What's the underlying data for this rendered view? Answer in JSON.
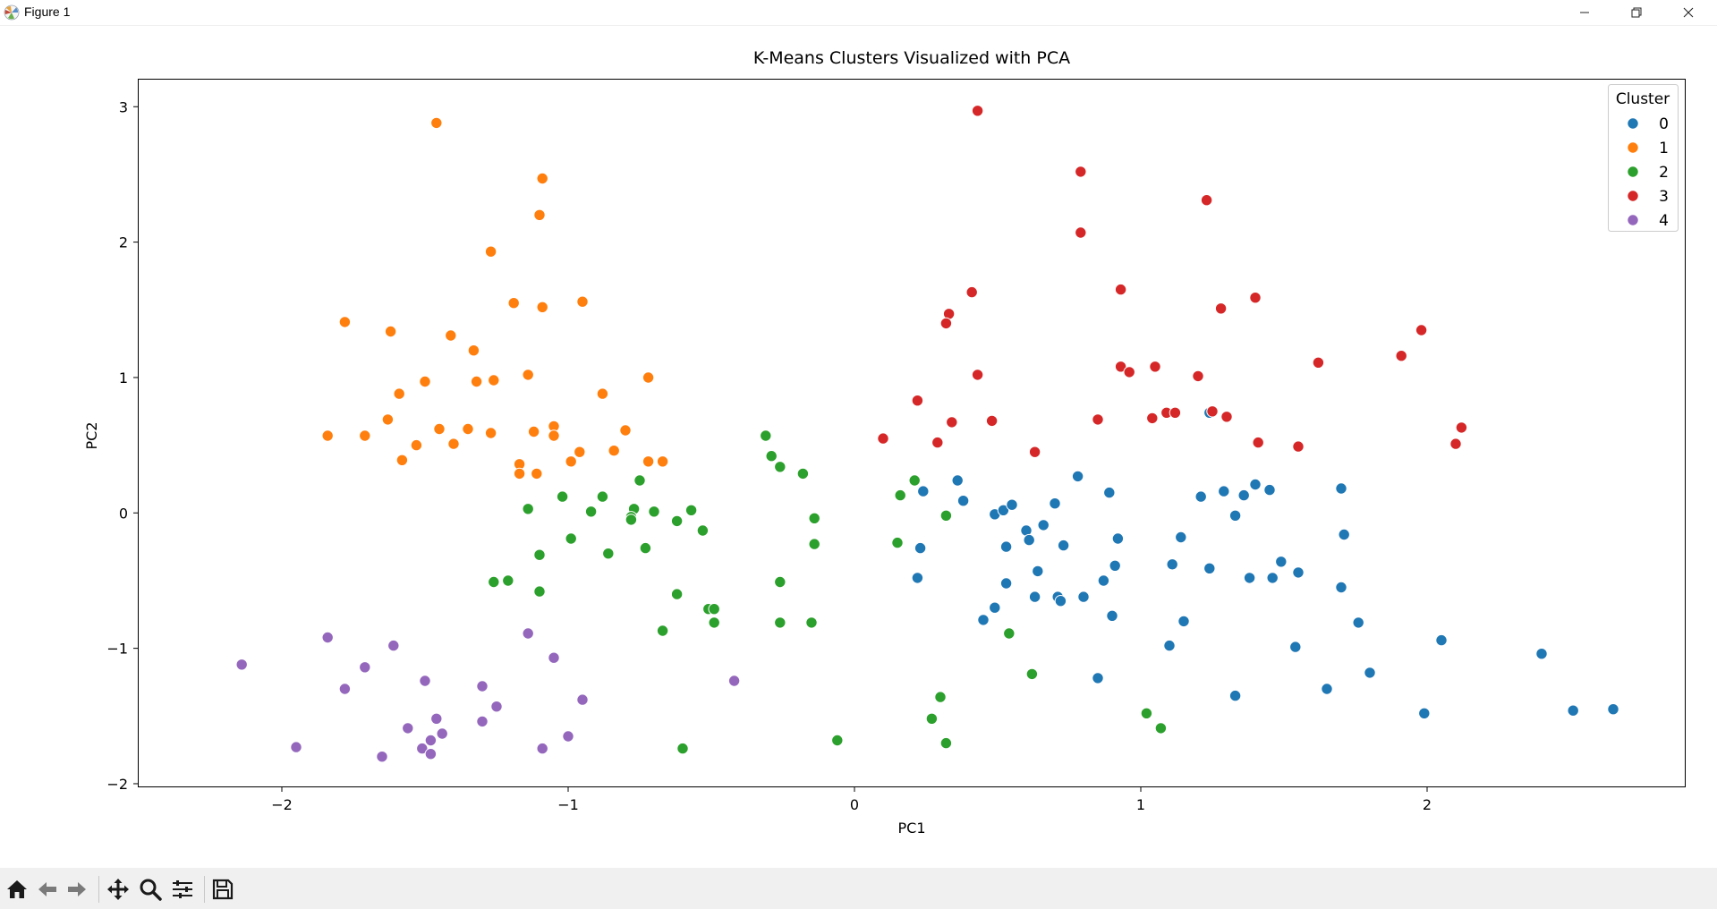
{
  "window": {
    "title": "Figure 1",
    "buttons": [
      "minimize-icon",
      "restore-icon",
      "close-icon"
    ]
  },
  "toolbar": {
    "icons": [
      "home-icon",
      "back-arrow-icon",
      "forward-arrow-icon",
      "pan-icon",
      "zoom-icon",
      "configure-subplots-icon",
      "save-icon"
    ]
  },
  "chart_data": {
    "type": "scatter",
    "title": "K-Means Clusters Visualized with PCA",
    "xlabel": "PC1",
    "ylabel": "PC2",
    "xlim": [
      -2.5,
      2.9
    ],
    "ylim": [
      -2.02,
      3.2
    ],
    "xticks": [
      -2,
      -1,
      0,
      1,
      2
    ],
    "yticks": [
      -2,
      -1,
      0,
      1,
      2,
      3
    ],
    "grid": false,
    "legend": {
      "title": "Cluster",
      "placement": "top-right"
    },
    "series": [
      {
        "name": "0",
        "color": "#1f77b4",
        "points": [
          [
            0.36,
            0.24
          ],
          [
            0.24,
            0.16
          ],
          [
            0.38,
            0.09
          ],
          [
            0.49,
            -0.01
          ],
          [
            0.52,
            0.02
          ],
          [
            0.55,
            0.06
          ],
          [
            0.66,
            -0.09
          ],
          [
            0.7,
            0.07
          ],
          [
            0.78,
            0.27
          ],
          [
            0.89,
            0.15
          ],
          [
            0.23,
            -0.26
          ],
          [
            0.22,
            -0.48
          ],
          [
            0.53,
            -0.25
          ],
          [
            0.6,
            -0.13
          ],
          [
            0.61,
            -0.2
          ],
          [
            0.73,
            -0.24
          ],
          [
            0.92,
            -0.19
          ],
          [
            0.64,
            -0.43
          ],
          [
            0.53,
            -0.52
          ],
          [
            0.63,
            -0.62
          ],
          [
            0.71,
            -0.62
          ],
          [
            0.72,
            -0.65
          ],
          [
            0.8,
            -0.62
          ],
          [
            0.87,
            -0.5
          ],
          [
            0.91,
            -0.39
          ],
          [
            0.49,
            -0.7
          ],
          [
            0.45,
            -0.79
          ],
          [
            0.9,
            -0.76
          ],
          [
            0.85,
            -1.22
          ],
          [
            1.21,
            0.12
          ],
          [
            1.29,
            0.16
          ],
          [
            1.36,
            0.13
          ],
          [
            1.4,
            0.21
          ],
          [
            1.45,
            0.17
          ],
          [
            1.33,
            -0.02
          ],
          [
            1.14,
            -0.18
          ],
          [
            1.11,
            -0.38
          ],
          [
            1.24,
            -0.41
          ],
          [
            1.38,
            -0.48
          ],
          [
            1.46,
            -0.48
          ],
          [
            1.49,
            -0.36
          ],
          [
            1.55,
            -0.44
          ],
          [
            1.15,
            -0.8
          ],
          [
            1.1,
            -0.98
          ],
          [
            1.33,
            -1.35
          ],
          [
            1.54,
            -0.99
          ],
          [
            1.24,
            0.74
          ],
          [
            1.7,
            0.18
          ],
          [
            1.71,
            -0.16
          ],
          [
            1.7,
            -0.55
          ],
          [
            1.76,
            -0.81
          ],
          [
            1.65,
            -1.3
          ],
          [
            1.8,
            -1.18
          ],
          [
            1.99,
            -1.48
          ],
          [
            2.05,
            -0.94
          ],
          [
            2.4,
            -1.04
          ],
          [
            2.51,
            -1.46
          ],
          [
            2.65,
            -1.45
          ]
        ]
      },
      {
        "name": "1",
        "color": "#ff7f0e",
        "points": [
          [
            -1.46,
            2.88
          ],
          [
            -1.09,
            2.47
          ],
          [
            -1.1,
            2.2
          ],
          [
            -1.27,
            1.93
          ],
          [
            -1.19,
            1.55
          ],
          [
            -1.09,
            1.52
          ],
          [
            -0.95,
            1.56
          ],
          [
            -1.78,
            1.41
          ],
          [
            -1.62,
            1.34
          ],
          [
            -1.41,
            1.31
          ],
          [
            -1.33,
            1.2
          ],
          [
            -1.14,
            1.02
          ],
          [
            -1.26,
            0.98
          ],
          [
            -1.32,
            0.97
          ],
          [
            -1.5,
            0.97
          ],
          [
            -1.59,
            0.88
          ],
          [
            -0.88,
            0.88
          ],
          [
            -0.72,
            1.0
          ],
          [
            -1.84,
            0.57
          ],
          [
            -1.71,
            0.57
          ],
          [
            -1.63,
            0.69
          ],
          [
            -1.45,
            0.62
          ],
          [
            -1.35,
            0.62
          ],
          [
            -1.27,
            0.59
          ],
          [
            -1.12,
            0.6
          ],
          [
            -1.05,
            0.64
          ],
          [
            -1.05,
            0.57
          ],
          [
            -0.8,
            0.61
          ],
          [
            -1.53,
            0.5
          ],
          [
            -1.4,
            0.51
          ],
          [
            -1.58,
            0.39
          ],
          [
            -1.17,
            0.36
          ],
          [
            -1.17,
            0.29
          ],
          [
            -1.11,
            0.29
          ],
          [
            -0.99,
            0.38
          ],
          [
            -0.96,
            0.45
          ],
          [
            -0.84,
            0.46
          ],
          [
            -0.72,
            0.38
          ],
          [
            -0.67,
            0.38
          ]
        ]
      },
      {
        "name": "2",
        "color": "#2ca02c",
        "points": [
          [
            -0.31,
            0.57
          ],
          [
            -0.29,
            0.42
          ],
          [
            -0.26,
            0.34
          ],
          [
            -0.18,
            0.29
          ],
          [
            -0.14,
            -0.04
          ],
          [
            -0.14,
            -0.23
          ],
          [
            -0.26,
            -0.51
          ],
          [
            -0.26,
            -0.81
          ],
          [
            -0.15,
            -0.81
          ],
          [
            -1.14,
            0.03
          ],
          [
            -1.02,
            0.12
          ],
          [
            -0.92,
            0.01
          ],
          [
            -0.88,
            0.12
          ],
          [
            -0.77,
            0.03
          ],
          [
            -0.78,
            -0.03
          ],
          [
            -0.78,
            -0.05
          ],
          [
            -0.75,
            0.24
          ],
          [
            -0.7,
            0.01
          ],
          [
            -0.62,
            -0.06
          ],
          [
            -0.57,
            0.02
          ],
          [
            -0.53,
            -0.13
          ],
          [
            -0.73,
            -0.26
          ],
          [
            -0.86,
            -0.3
          ],
          [
            -0.99,
            -0.19
          ],
          [
            -1.1,
            -0.31
          ],
          [
            -1.26,
            -0.51
          ],
          [
            -1.21,
            -0.5
          ],
          [
            -1.1,
            -0.58
          ],
          [
            -0.62,
            -0.6
          ],
          [
            -0.51,
            -0.71
          ],
          [
            -0.49,
            -0.71
          ],
          [
            -0.49,
            -0.81
          ],
          [
            -0.67,
            -0.87
          ],
          [
            -0.6,
            -1.74
          ],
          [
            -0.06,
            -1.68
          ],
          [
            0.16,
            0.13
          ],
          [
            0.21,
            0.24
          ],
          [
            0.32,
            -0.02
          ],
          [
            0.15,
            -0.22
          ],
          [
            0.54,
            -0.89
          ],
          [
            0.62,
            -1.19
          ],
          [
            0.3,
            -1.36
          ],
          [
            0.27,
            -1.52
          ],
          [
            0.32,
            -1.7
          ],
          [
            1.02,
            -1.48
          ],
          [
            1.07,
            -1.59
          ]
        ]
      },
      {
        "name": "3",
        "color": "#d62728",
        "points": [
          [
            0.43,
            2.97
          ],
          [
            0.79,
            2.52
          ],
          [
            0.79,
            2.07
          ],
          [
            1.23,
            2.31
          ],
          [
            0.41,
            1.63
          ],
          [
            0.33,
            1.47
          ],
          [
            0.32,
            1.4
          ],
          [
            0.43,
            1.02
          ],
          [
            0.93,
            1.65
          ],
          [
            0.93,
            1.08
          ],
          [
            0.96,
            1.04
          ],
          [
            1.05,
            1.08
          ],
          [
            1.2,
            1.01
          ],
          [
            1.28,
            1.51
          ],
          [
            1.4,
            1.59
          ],
          [
            0.22,
            0.83
          ],
          [
            0.34,
            0.67
          ],
          [
            0.48,
            0.68
          ],
          [
            0.85,
            0.69
          ],
          [
            1.04,
            0.7
          ],
          [
            1.09,
            0.74
          ],
          [
            1.12,
            0.74
          ],
          [
            1.25,
            0.75
          ],
          [
            1.3,
            0.71
          ],
          [
            0.1,
            0.55
          ],
          [
            0.29,
            0.52
          ],
          [
            0.63,
            0.45
          ],
          [
            1.41,
            0.52
          ],
          [
            1.55,
            0.49
          ],
          [
            1.62,
            1.11
          ],
          [
            1.91,
            1.16
          ],
          [
            1.98,
            1.35
          ],
          [
            2.1,
            0.51
          ],
          [
            2.12,
            0.63
          ]
        ]
      },
      {
        "name": "4",
        "color": "#9467bd",
        "points": [
          [
            -2.14,
            -1.12
          ],
          [
            -1.95,
            -1.73
          ],
          [
            -1.84,
            -0.92
          ],
          [
            -1.78,
            -1.3
          ],
          [
            -1.71,
            -1.14
          ],
          [
            -1.65,
            -1.8
          ],
          [
            -1.61,
            -0.98
          ],
          [
            -1.56,
            -1.59
          ],
          [
            -1.51,
            -1.74
          ],
          [
            -1.5,
            -1.24
          ],
          [
            -1.48,
            -1.68
          ],
          [
            -1.48,
            -1.78
          ],
          [
            -1.46,
            -1.52
          ],
          [
            -1.44,
            -1.63
          ],
          [
            -1.3,
            -1.28
          ],
          [
            -1.3,
            -1.54
          ],
          [
            -1.25,
            -1.43
          ],
          [
            -1.14,
            -0.89
          ],
          [
            -1.09,
            -1.74
          ],
          [
            -1.05,
            -1.07
          ],
          [
            -1.0,
            -1.65
          ],
          [
            -0.95,
            -1.38
          ],
          [
            -0.42,
            -1.24
          ]
        ]
      }
    ]
  }
}
